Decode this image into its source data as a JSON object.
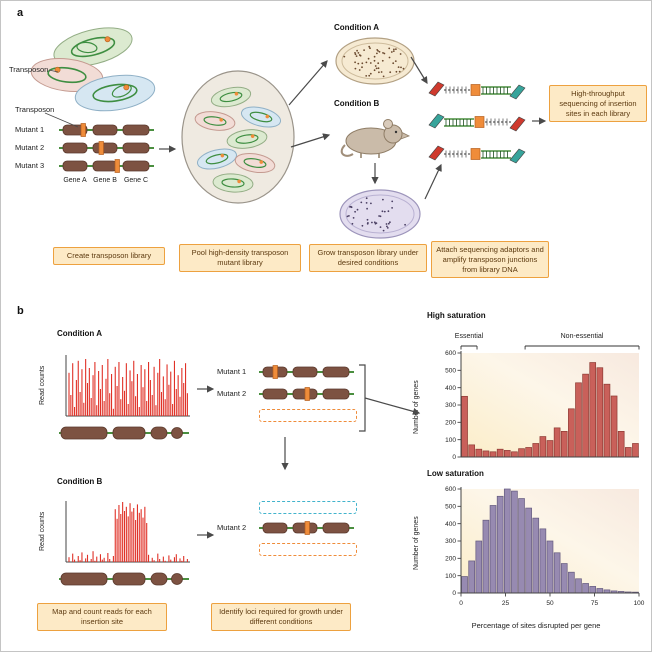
{
  "panel_a": {
    "label": "a",
    "transposon_callout": "Transposon",
    "transposon_track_label": "Transposon",
    "mutant_labels": [
      "Mutant 1",
      "Mutant 2",
      "Mutant 3"
    ],
    "gene_labels": [
      "Gene A",
      "Gene B",
      "Gene C"
    ],
    "condition_a_title": "Condition A",
    "condition_b_title": "Condition B",
    "result_box": "High-throughput sequencing of insertion sites in each library",
    "captions": [
      "Create transposon library",
      "Pool high-density transposon mutant library",
      "Grow transposon library under desired conditions",
      "Attach sequencing adaptors and amplify transposon junctions from library DNA"
    ]
  },
  "panel_b": {
    "label": "b",
    "condition_a_title": "Condition A",
    "condition_b_title": "Condition B",
    "mutant1_label": "Mutant 1",
    "mutant2_label": "Mutant 2",
    "mutant2_bottom_label": "Mutant 2",
    "captions": [
      "Map and count reads for each insertion site",
      "Identify loci required for growth under different conditions"
    ]
  },
  "colors": {
    "caption_bg": "#fdeac6",
    "caption_border": "#eda13f",
    "spike_red": "#e03127",
    "gene_brown": "#7d5242",
    "gene_brown_stroke": "#5a392c",
    "dna_green": "#4a8f3f",
    "transposon_orange": "#ef8c3a",
    "high_bar": "#c9605a",
    "low_bar": "#978ab1"
  },
  "chart_data": [
    {
      "id": "high_saturation",
      "type": "bar",
      "title": "High saturation",
      "ylabel": "Number of genes",
      "xlabel": "",
      "ylim": [
        0,
        600
      ],
      "yticks": [
        0,
        100,
        200,
        300,
        400,
        500,
        600
      ],
      "xticks": [
        0,
        25,
        50,
        75,
        100
      ],
      "bin_width_percent": 4,
      "values": [
        350,
        70,
        45,
        35,
        30,
        45,
        38,
        30,
        48,
        55,
        78,
        118,
        95,
        168,
        148,
        278,
        428,
        478,
        545,
        515,
        420,
        352,
        148,
        55,
        78
      ],
      "bar_color": "#c9605a",
      "bar_stroke": "#8e3b34",
      "annotations": [
        {
          "label": "Essential",
          "from": 0,
          "to": 9
        },
        {
          "label": "Non-essential",
          "from": 36,
          "to": 100
        }
      ]
    },
    {
      "id": "low_saturation",
      "type": "bar",
      "title": "Low saturation",
      "ylabel": "Number of genes",
      "xlabel": "Percentage of sites disrupted per gene",
      "ylim": [
        0,
        600
      ],
      "yticks": [
        0,
        100,
        200,
        300,
        400,
        500,
        600
      ],
      "xticks": [
        0,
        25,
        50,
        75,
        100
      ],
      "bin_width_percent": 4,
      "values": [
        95,
        185,
        300,
        420,
        505,
        558,
        600,
        588,
        545,
        490,
        432,
        370,
        300,
        232,
        170,
        120,
        82,
        55,
        38,
        26,
        18,
        12,
        9,
        6,
        5
      ],
      "bar_color": "#978ab1",
      "bar_stroke": "#645a7e"
    },
    {
      "id": "read_counts_condition_a",
      "type": "bar",
      "ylabel": "Read counts",
      "values": [
        72,
        35,
        88,
        15,
        60,
        92,
        40,
        78,
        22,
        95,
        55,
        80,
        30,
        68,
        90,
        18,
        75,
        45,
        85,
        25,
        62,
        95,
        38,
        70,
        12,
        82,
        50,
        90,
        28,
        65,
        42,
        88,
        20,
        76,
        58,
        92,
        33,
        70,
        15,
        85,
        48,
        78,
        25,
        90,
        60,
        35,
        82,
        18,
        72,
        95,
        40,
        66,
        28,
        86,
        52,
        74,
        20,
        92,
        45,
        68,
        32,
        80,
        55,
        88,
        38
      ]
    },
    {
      "id": "read_counts_condition_b",
      "type": "bar",
      "ylabel": "Read counts",
      "values": [
        8,
        0,
        14,
        4,
        0,
        10,
        3,
        16,
        0,
        6,
        12,
        0,
        5,
        18,
        2,
        9,
        0,
        13,
        4,
        7,
        0,
        15,
        5,
        0,
        10,
        88,
        72,
        95,
        80,
        100,
        85,
        92,
        76,
        98,
        84,
        90,
        70,
        96,
        82,
        88,
        74,
        92,
        65,
        12,
        0,
        7,
        3,
        0,
        14,
        5,
        0,
        9,
        2,
        0,
        11,
        4,
        0,
        8,
        13,
        0,
        6,
        2,
        10,
        0,
        5
      ]
    }
  ]
}
